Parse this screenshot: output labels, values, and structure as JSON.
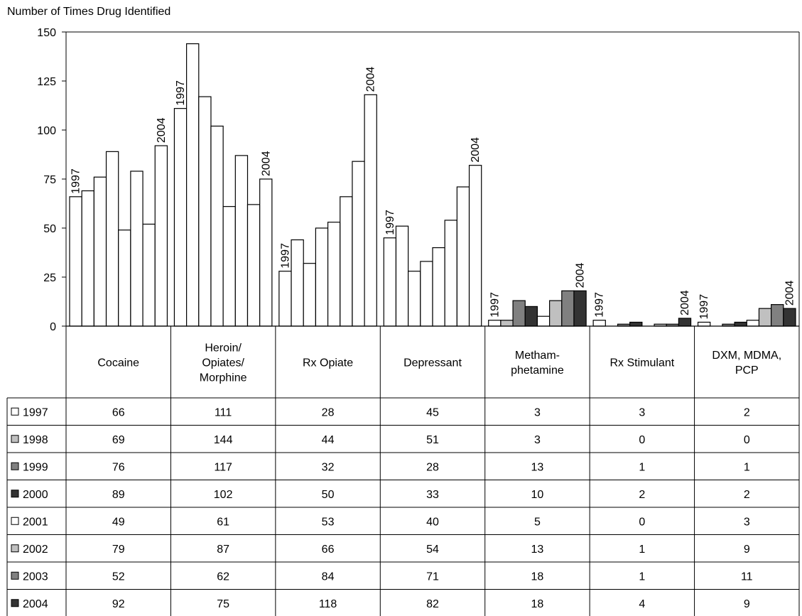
{
  "chart_data": {
    "type": "bar",
    "ylabel": "Number of Times Drug Identified",
    "ylim": [
      0,
      150
    ],
    "yticks": [
      0,
      25,
      50,
      75,
      100,
      125,
      150
    ],
    "grid": false,
    "legend": "data-table",
    "categories": [
      "Cocaine",
      "Heroin/ Opiates/ Morphine",
      "Rx Opiate",
      "Depressant",
      "Metham- phetamine",
      "Rx Stimulant",
      "DXM, MDMA, PCP"
    ],
    "category_lines": [
      [
        "Cocaine"
      ],
      [
        "Heroin/",
        "Opiates/",
        "Morphine"
      ],
      [
        "Rx Opiate"
      ],
      [
        "Depressant"
      ],
      [
        "Metham-",
        "phetamine"
      ],
      [
        "Rx Stimulant"
      ],
      [
        "DXM, MDMA,",
        "PCP"
      ]
    ],
    "series": [
      {
        "name": "1997",
        "color": "#ffffff",
        "values": [
          66,
          111,
          28,
          45,
          3,
          3,
          2
        ]
      },
      {
        "name": "1998",
        "color": "#c0c0c0",
        "values": [
          69,
          144,
          44,
          51,
          3,
          0,
          0
        ]
      },
      {
        "name": "1999",
        "color": "#808080",
        "values": [
          76,
          117,
          32,
          28,
          13,
          1,
          1
        ]
      },
      {
        "name": "2000",
        "color": "#333333",
        "values": [
          89,
          102,
          50,
          33,
          10,
          2,
          2
        ]
      },
      {
        "name": "2001",
        "color": "#ffffff",
        "values": [
          49,
          61,
          53,
          40,
          5,
          0,
          3
        ]
      },
      {
        "name": "2002",
        "color": "#c0c0c0",
        "values": [
          79,
          87,
          66,
          54,
          13,
          1,
          9
        ]
      },
      {
        "name": "2003",
        "color": "#808080",
        "values": [
          52,
          62,
          84,
          71,
          18,
          1,
          11
        ]
      },
      {
        "name": "2004",
        "color": "#333333",
        "values": [
          92,
          75,
          118,
          82,
          18,
          4,
          9
        ]
      }
    ],
    "bar_fill_override": {
      "Cocaine": "#ffffff",
      "Heroin/ Opiates/ Morphine": "#ffffff",
      "Rx Opiate": "#ffffff",
      "Depressant": "#ffffff"
    },
    "annotations": {
      "first_label": "1997",
      "last_label": "2004"
    }
  }
}
